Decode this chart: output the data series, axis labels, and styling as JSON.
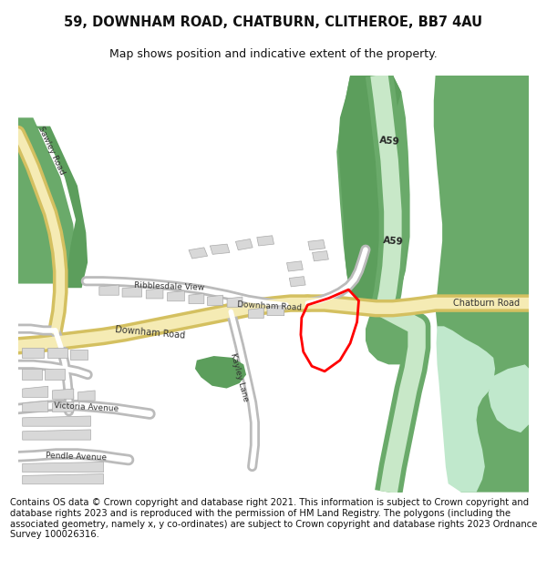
{
  "title_line1": "59, DOWNHAM ROAD, CHATBURN, CLITHEROE, BB7 4AU",
  "title_line2": "Map shows position and indicative extent of the property.",
  "footer": "Contains OS data © Crown copyright and database right 2021. This information is subject to Crown copyright and database rights 2023 and is reproduced with the permission of HM Land Registry. The polygons (including the associated geometry, namely x, y co-ordinates) are subject to Crown copyright and database rights 2023 Ordnance Survey 100026316.",
  "bg_color": "#ffffff",
  "map_bg": "#f7f5f2",
  "road_yellow_fill": "#f5ebb4",
  "road_yellow_edge": "#d4c060",
  "green_dark": "#5c9e5c",
  "green_embankment": "#6aaa6a",
  "green_light_road": "#c8e8c8",
  "road_white": "#ffffff",
  "road_gray_edge": "#bbbbbb",
  "building_color": "#d8d8d8",
  "building_edge": "#aaaaaa",
  "water_color": "#c0e8cc",
  "property_color": "#ff0000",
  "title_fontsize": 10.5,
  "subtitle_fontsize": 9,
  "footer_fontsize": 7.2,
  "label_color": "#333333"
}
